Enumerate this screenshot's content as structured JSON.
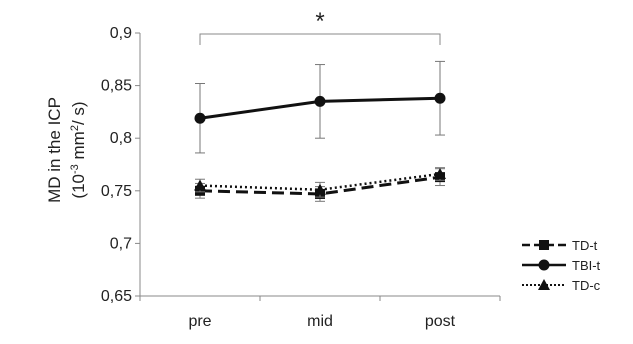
{
  "chart_data": {
    "type": "line",
    "categories": [
      "pre",
      "mid",
      "post"
    ],
    "ylabel_line1": "MD in the ICP",
    "ylabel_line2_prefix": "(10",
    "ylabel_line2_exp": "-3",
    "ylabel_line2_mid": " mm",
    "ylabel_line2_exp2": "2",
    "ylabel_line2_suffix": "/ s)",
    "ylim": [
      0.65,
      0.9
    ],
    "yticks": [
      0.65,
      0.7,
      0.75,
      0.8,
      0.85,
      0.9
    ],
    "ytick_labels": [
      "0,65",
      "0,7",
      "0,75",
      "0,8",
      "0,85",
      "0,9"
    ],
    "grid": false,
    "legend_position": "bottom-right",
    "series": [
      {
        "name": "TD-t",
        "values": [
          0.75,
          0.747,
          0.763
        ],
        "errors": [
          0.007,
          0.007,
          0.008
        ],
        "marker": "square",
        "dash": "dashed",
        "color": "#111111"
      },
      {
        "name": "TBI-t",
        "values": [
          0.819,
          0.835,
          0.838
        ],
        "errors": [
          0.033,
          0.035,
          0.035
        ],
        "marker": "circle",
        "dash": "solid",
        "color": "#111111"
      },
      {
        "name": "TD-c",
        "values": [
          0.755,
          0.751,
          0.766
        ],
        "errors": [
          0.006,
          0.007,
          0.006
        ],
        "marker": "triangle",
        "dash": "dotted",
        "color": "#111111"
      }
    ],
    "annotations": [
      {
        "text": "*",
        "from": "pre",
        "to": "post"
      }
    ]
  }
}
